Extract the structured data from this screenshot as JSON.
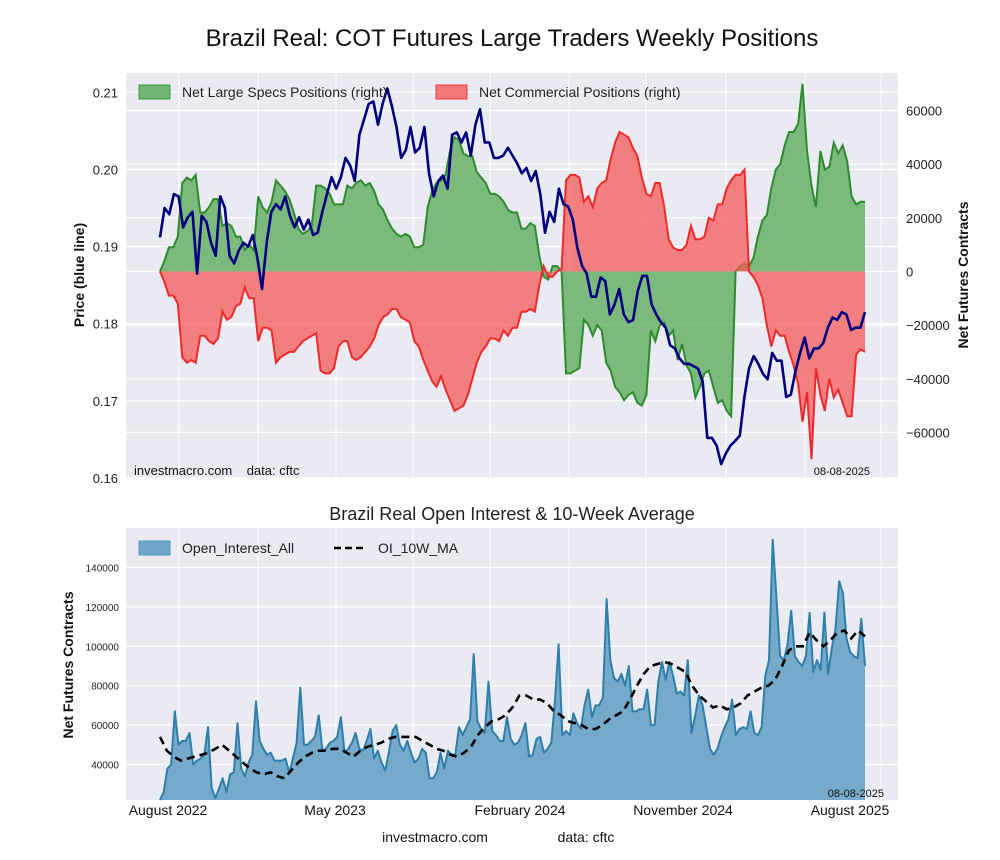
{
  "page": {
    "title": "Brazil Real: COT Futures Large Traders Weekly Positions",
    "footer_site": "investmacro.com",
    "footer_source": "data: cftc"
  },
  "chart_data": [
    {
      "id": "positions",
      "type": "area",
      "title": "Brazil Real: COT Futures Large Traders Weekly Positions",
      "ylabel_left": "Price (blue line)",
      "ylabel_right": "Net Futures Contracts",
      "ylim_left": [
        0.16,
        0.2125
      ],
      "ylim_right": [
        -77000,
        74000
      ],
      "yticks_left": [
        "0.16",
        "0.17",
        "0.18",
        "0.19",
        "0.20",
        "0.21"
      ],
      "yticks_right": [
        "−60000",
        "−40000",
        "−20000",
        "0",
        "20000",
        "40000",
        "60000"
      ],
      "grid": true,
      "legend_position": "top-left",
      "annotation_left": "investmacro.com    data: cftc",
      "annotation_right": "08-08-2025",
      "legend": [
        {
          "name": "Net Large Specs Positions (right)",
          "color": "#3a9a3a"
        },
        {
          "name": "Net Commercial Positions (right)",
          "color": "#f03a3a"
        }
      ],
      "colors": {
        "price": "#00007f",
        "specs_fill": "#55a855",
        "specs_line": "#2e8b2e",
        "comm_fill": "#f45a5a",
        "comm_line": "#ee2a2a"
      },
      "x_range": [
        "2022-07-05",
        "2025-08-05"
      ],
      "price": [
        0.1912,
        0.195,
        0.1942,
        0.1968,
        0.1965,
        0.1925,
        0.1938,
        0.1945,
        0.1865,
        0.194,
        0.1932,
        0.1905,
        0.1888,
        0.1965,
        0.195,
        0.1888,
        0.1878,
        0.1895,
        0.1905,
        0.19,
        0.1915,
        0.1885,
        0.1845,
        0.1905,
        0.1945,
        0.1955,
        0.1948,
        0.1965,
        0.194,
        0.1925,
        0.1938,
        0.1922,
        0.1935,
        0.1915,
        0.1918,
        0.1945,
        0.1968,
        0.199,
        0.1975,
        0.199,
        0.2015,
        0.2005,
        0.1985,
        0.2045,
        0.2065,
        0.2085,
        0.2088,
        0.2058,
        0.2085,
        0.2105,
        0.2082,
        0.2055,
        0.2015,
        0.2025,
        0.2055,
        0.2022,
        0.2028,
        0.2055,
        0.1995,
        0.1965,
        0.1985,
        0.1992,
        0.1975,
        0.2045,
        0.2048,
        0.2035,
        0.2048,
        0.2018,
        0.2058,
        0.2078,
        0.2035,
        0.2035,
        0.2015,
        0.2015,
        0.2018,
        0.2028,
        0.2018,
        0.2008,
        0.1995,
        0.2002,
        0.1985,
        0.1998,
        0.1968,
        0.1918,
        0.1945,
        0.1932,
        0.1975,
        0.1955,
        0.1952,
        0.1935,
        0.1898,
        0.1875,
        0.1865,
        0.1835,
        0.1835,
        0.186,
        0.1855,
        0.1812,
        0.1825,
        0.1845,
        0.1812,
        0.1802,
        0.1805,
        0.1842,
        0.1862,
        0.1862,
        0.1825,
        0.1812,
        0.1802,
        0.1795,
        0.1772,
        0.1768,
        0.1755,
        0.1748,
        0.1748,
        0.1745,
        0.1742,
        0.1725,
        0.1652,
        0.1652,
        0.1642,
        0.1618,
        0.1632,
        0.1642,
        0.1648,
        0.1655,
        0.1705,
        0.1742,
        0.1758,
        0.1748,
        0.1735,
        0.1728,
        0.1762,
        0.1752,
        0.1752,
        0.1705,
        0.1708,
        0.1738,
        0.1762,
        0.1782,
        0.1755,
        0.1768,
        0.1768,
        0.1775,
        0.1795,
        0.1808,
        0.1805,
        0.1815,
        0.1812,
        0.1792,
        0.1795,
        0.1795,
        0.1815
      ],
      "net_specs": [
        0,
        4000,
        9000,
        9000,
        13000,
        33000,
        35000,
        34000,
        36000,
        22000,
        22000,
        24000,
        27000,
        27000,
        17000,
        18000,
        17000,
        13000,
        13000,
        8000,
        10000,
        8000,
        28000,
        24000,
        22000,
        26000,
        34000,
        32000,
        30000,
        27000,
        22000,
        16000,
        14000,
        15000,
        17000,
        32000,
        32000,
        31000,
        29000,
        25000,
        25000,
        25000,
        32000,
        31000,
        33000,
        34000,
        32000,
        33000,
        30000,
        25000,
        23000,
        19000,
        16000,
        14000,
        13000,
        14000,
        13000,
        9000,
        9000,
        10000,
        24000,
        30000,
        33000,
        34000,
        36000,
        45000,
        50000,
        49000,
        44000,
        43000,
        43000,
        37000,
        35000,
        33000,
        29000,
        29000,
        28000,
        26000,
        23000,
        22000,
        22000,
        16000,
        16000,
        18000,
        17000,
        6000,
        -2000,
        -3000,
        2000,
        2000,
        0,
        -38000,
        -38000,
        -37000,
        -36000,
        -18000,
        -20000,
        -24000,
        -20000,
        -22000,
        -34000,
        -37000,
        -43000,
        -45000,
        -48000,
        -46000,
        -45000,
        -49000,
        -50000,
        -46000,
        -22000,
        -26000,
        -20000,
        -19000,
        -24000,
        -22000,
        -33000,
        -27000,
        -35000,
        -38000,
        -47000,
        -43000,
        -38000,
        -37000,
        -43000,
        -49000,
        -48000,
        -52000,
        -54000,
        0,
        2000,
        3000,
        2000,
        5000,
        13000,
        19000,
        21000,
        31000,
        38000,
        40000,
        47000,
        52000,
        52000,
        55000,
        70000,
        45000,
        32000,
        24000,
        45000,
        38000,
        39000,
        48000,
        44000,
        47000,
        41000,
        28000,
        25000,
        26000,
        26000
      ],
      "net_commercial": [
        0,
        -4000,
        -9000,
        -9000,
        -12000,
        -32000,
        -34000,
        -33000,
        -34000,
        -24000,
        -24000,
        -26000,
        -27000,
        -25000,
        -15000,
        -18000,
        -17000,
        -13000,
        -12000,
        -6000,
        -10000,
        -10000,
        -26000,
        -21000,
        -21000,
        -22000,
        -34000,
        -32000,
        -31000,
        -30000,
        -30000,
        -28000,
        -26000,
        -25000,
        -24000,
        -23000,
        -37000,
        -38000,
        -38000,
        -36000,
        -28000,
        -26000,
        -26000,
        -32000,
        -33000,
        -32000,
        -30000,
        -28000,
        -25000,
        -20000,
        -17000,
        -16000,
        -14000,
        -14000,
        -17000,
        -18000,
        -19000,
        -26000,
        -28000,
        -33000,
        -37000,
        -41000,
        -43000,
        -39000,
        -44000,
        -48000,
        -52000,
        -51000,
        -50000,
        -46000,
        -40000,
        -34000,
        -30000,
        -28000,
        -25000,
        -25000,
        -26000,
        -22000,
        -24000,
        -21000,
        -21000,
        -15000,
        -15000,
        -14000,
        -15000,
        -5000,
        2000,
        -2000,
        -2000,
        0,
        1000,
        34000,
        36000,
        36000,
        35000,
        26000,
        28000,
        24000,
        31000,
        33000,
        34000,
        42000,
        48000,
        52000,
        51000,
        50000,
        46000,
        43000,
        35000,
        29000,
        28000,
        33000,
        33000,
        24000,
        12000,
        9000,
        8000,
        8000,
        10000,
        17000,
        12000,
        12000,
        13000,
        20000,
        19000,
        25000,
        25000,
        31000,
        34000,
        36000,
        36000,
        38000,
        0,
        -2000,
        -5000,
        -10000,
        -20000,
        -28000,
        -22000,
        -24000,
        -24000,
        -30000,
        -35000,
        -42000,
        -56000,
        -45000,
        -70000,
        -36000,
        -46000,
        -52000,
        -40000,
        -47000,
        -44000,
        -49000,
        -54000,
        -54000,
        -31000,
        -29000,
        -30000,
        -28000,
        -28000
      ]
    },
    {
      "id": "open-interest",
      "type": "area",
      "title": "Brazil Real Open Interest & 10-Week Average",
      "ylabel": "Net Futures Contracts",
      "ylim": [
        22000,
        160000
      ],
      "yticks": [
        "40000",
        "60000",
        "80000",
        "100000",
        "120000",
        "140000"
      ],
      "xticks": [
        "August 2022",
        "May 2023",
        "February 2024",
        "November 2024",
        "August 2025"
      ],
      "grid": true,
      "legend_position": "top-left",
      "annotation_right": "08-08-2025",
      "legend": [
        {
          "name": "Open_Interest_All",
          "color": "#5b9bc4",
          "style": "area"
        },
        {
          "name": "OI_10W_MA",
          "color": "#000000",
          "style": "dashed"
        }
      ],
      "colors": {
        "oi_fill": "#6fa6c8",
        "oi_line": "#2e7fab",
        "ma_line": "#000000"
      },
      "open_interest": [
        22000,
        26000,
        38000,
        40000,
        67000,
        50000,
        52000,
        52000,
        56000,
        40000,
        42000,
        43000,
        45000,
        59000,
        28000,
        23000,
        28000,
        33000,
        26000,
        35000,
        36000,
        61000,
        38000,
        34000,
        41000,
        45000,
        72000,
        52000,
        48000,
        45000,
        46000,
        42000,
        42000,
        42000,
        43000,
        36000,
        43000,
        51000,
        79000,
        50000,
        50000,
        52000,
        54000,
        65000,
        47000,
        48000,
        51000,
        52000,
        54000,
        64000,
        46000,
        48000,
        51000,
        56000,
        48000,
        47000,
        52000,
        58000,
        43000,
        47000,
        41000,
        37000,
        46000,
        57000,
        60000,
        50000,
        47000,
        52000,
        46000,
        41000,
        43000,
        48000,
        46000,
        33000,
        33000,
        36000,
        46000,
        38000,
        47000,
        45000,
        45000,
        59000,
        55000,
        59000,
        63000,
        96000,
        62000,
        58000,
        56000,
        82000,
        57000,
        55000,
        52000,
        52000,
        64000,
        53000,
        50000,
        51000,
        55000,
        61000,
        44000,
        45000,
        53000,
        54000,
        46000,
        48000,
        51000,
        72000,
        101000,
        55000,
        57000,
        55000,
        66000,
        61000,
        58000,
        70000,
        78000,
        64000,
        70000,
        70000,
        74000,
        124000,
        93000,
        84000,
        82000,
        86000,
        80000,
        90000,
        67000,
        67000,
        68000,
        68000,
        78000,
        60000,
        60000,
        82000,
        92000,
        83000,
        92000,
        85000,
        76000,
        77000,
        75000,
        93000,
        56000,
        65000,
        75000,
        70000,
        59000,
        48000,
        45000,
        48000,
        54000,
        59000,
        63000,
        73000,
        55000,
        58000,
        59000,
        58000,
        67000,
        56000,
        55000,
        59000,
        85000,
        93000,
        154000,
        125000,
        95000,
        93000,
        101000,
        118000,
        95000,
        92000,
        90000,
        95000,
        117000,
        87000,
        93000,
        88000,
        117000,
        86000,
        99000,
        109000,
        133000,
        127000,
        104000,
        97000,
        95000,
        94000,
        114000,
        90000
      ],
      "oi_10w_ma": [
        54000,
        47000,
        44000,
        42000,
        43000,
        44000,
        45000,
        46000,
        48000,
        50000,
        47000,
        44000,
        41000,
        38000,
        36000,
        35000,
        36000,
        34000,
        33000,
        37000,
        41000,
        44000,
        46000,
        47000,
        47000,
        48000,
        48000,
        46000,
        44000,
        47000,
        49000,
        50000,
        51000,
        53000,
        54000,
        54000,
        54000,
        54000,
        52000,
        50000,
        48000,
        47000,
        45000,
        44000,
        46000,
        49000,
        55000,
        59000,
        62000,
        63000,
        65000,
        69000,
        75000,
        75000,
        73000,
        73000,
        71000,
        67000,
        65000,
        62000,
        61000,
        60000,
        58000,
        58000,
        60000,
        63000,
        65000,
        67000,
        73000,
        80000,
        86000,
        90000,
        91000,
        92000,
        91000,
        89000,
        87000,
        80000,
        75000,
        72000,
        69000,
        70000,
        68000,
        69000,
        71000,
        75000,
        77000,
        79000,
        80000,
        83000,
        90000,
        98000,
        100000,
        100000,
        107000,
        103000,
        100000,
        103000,
        107000,
        108000,
        104000,
        108000,
        105000
      ]
    }
  ]
}
